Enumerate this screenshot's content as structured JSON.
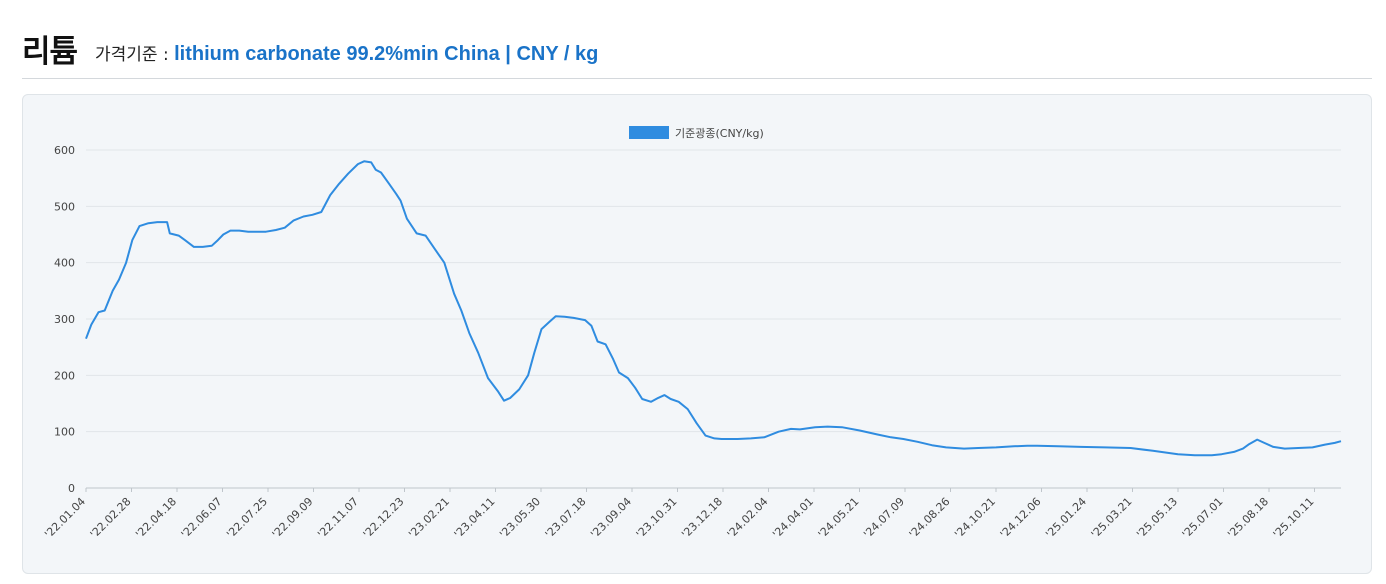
{
  "header": {
    "title": "리튬",
    "basis_label": "가격기준 :",
    "basis_value": "lithium carbonate 99.2%min China | CNY / kg"
  },
  "colors": {
    "accent": "#1a73c8",
    "line": "#2f8ce0"
  },
  "chart_data": {
    "type": "line",
    "title": "",
    "xlabel": "",
    "ylabel": "",
    "ylim": [
      0,
      600
    ],
    "yticks": [
      0,
      100,
      200,
      300,
      400,
      500,
      600
    ],
    "grid": true,
    "legend_position": "top-center",
    "x_tick_labels": [
      "'22.01.04",
      "'22.02.28",
      "'22.04.18",
      "'22.06.07",
      "'22.07.25",
      "'22.09.09",
      "'22.11.07",
      "'22.12.23",
      "'23.02.21",
      "'23.04.11",
      "'23.05.30",
      "'23.07.18",
      "'23.09.04",
      "'23.10.31",
      "'23.12.18",
      "'24.02.04",
      "'24.04.01",
      "'24.05.21",
      "'24.07.09",
      "'24.08.26",
      "'24.10.21",
      "'24.12.06",
      "'25.01.24",
      "'25.03.21",
      "'25.05.13",
      "'25.07.01",
      "'25.08.18",
      "'25.10.11"
    ],
    "series": [
      {
        "name": "기준광종(CNY/kg)",
        "color": "#2f8ce0",
        "points": [
          [
            "2022-01-04",
            265
          ],
          [
            "2022-01-10",
            290
          ],
          [
            "2022-01-18",
            312
          ],
          [
            "2022-01-25",
            315
          ],
          [
            "2022-02-03",
            350
          ],
          [
            "2022-02-10",
            370
          ],
          [
            "2022-02-18",
            400
          ],
          [
            "2022-02-25",
            440
          ],
          [
            "2022-03-05",
            465
          ],
          [
            "2022-03-15",
            470
          ],
          [
            "2022-03-25",
            472
          ],
          [
            "2022-04-05",
            472
          ],
          [
            "2022-04-08",
            452
          ],
          [
            "2022-04-18",
            448
          ],
          [
            "2022-04-25",
            440
          ],
          [
            "2022-05-05",
            428
          ],
          [
            "2022-05-15",
            428
          ],
          [
            "2022-05-25",
            430
          ],
          [
            "2022-06-01",
            440
          ],
          [
            "2022-06-07",
            450
          ],
          [
            "2022-06-15",
            457
          ],
          [
            "2022-06-25",
            457
          ],
          [
            "2022-07-05",
            455
          ],
          [
            "2022-07-15",
            455
          ],
          [
            "2022-07-25",
            455
          ],
          [
            "2022-08-05",
            458
          ],
          [
            "2022-08-15",
            462
          ],
          [
            "2022-08-25",
            475
          ],
          [
            "2022-09-05",
            482
          ],
          [
            "2022-09-15",
            485
          ],
          [
            "2022-09-25",
            490
          ],
          [
            "2022-10-05",
            520
          ],
          [
            "2022-10-15",
            540
          ],
          [
            "2022-10-25",
            558
          ],
          [
            "2022-11-05",
            575
          ],
          [
            "2022-11-12",
            580
          ],
          [
            "2022-11-20",
            578
          ],
          [
            "2022-11-25",
            565
          ],
          [
            "2022-12-01",
            560
          ],
          [
            "2022-12-10",
            540
          ],
          [
            "2022-12-18",
            522
          ],
          [
            "2022-12-23",
            510
          ],
          [
            "2022-12-30",
            478
          ],
          [
            "2023-01-10",
            452
          ],
          [
            "2023-01-20",
            448
          ],
          [
            "2023-01-30",
            425
          ],
          [
            "2023-02-10",
            400
          ],
          [
            "2023-02-21",
            345
          ],
          [
            "2023-03-01",
            315
          ],
          [
            "2023-03-10",
            275
          ],
          [
            "2023-03-20",
            240
          ],
          [
            "2023-03-31",
            195
          ],
          [
            "2023-04-11",
            172
          ],
          [
            "2023-04-18",
            155
          ],
          [
            "2023-04-25",
            160
          ],
          [
            "2023-05-05",
            175
          ],
          [
            "2023-05-15",
            200
          ],
          [
            "2023-05-22",
            240
          ],
          [
            "2023-05-30",
            282
          ],
          [
            "2023-06-08",
            295
          ],
          [
            "2023-06-15",
            305
          ],
          [
            "2023-06-25",
            304
          ],
          [
            "2023-07-05",
            302
          ],
          [
            "2023-07-18",
            298
          ],
          [
            "2023-07-25",
            288
          ],
          [
            "2023-08-01",
            260
          ],
          [
            "2023-08-10",
            255
          ],
          [
            "2023-08-18",
            230
          ],
          [
            "2023-08-25",
            205
          ],
          [
            "2023-09-04",
            195
          ],
          [
            "2023-09-12",
            178
          ],
          [
            "2023-09-20",
            158
          ],
          [
            "2023-09-30",
            153
          ],
          [
            "2023-10-08",
            160
          ],
          [
            "2023-10-15",
            165
          ],
          [
            "2023-10-22",
            158
          ],
          [
            "2023-10-31",
            153
          ],
          [
            "2023-11-10",
            140
          ],
          [
            "2023-11-20",
            115
          ],
          [
            "2023-11-30",
            93
          ],
          [
            "2023-12-10",
            88
          ],
          [
            "2023-12-18",
            87
          ],
          [
            "2024-01-05",
            87
          ],
          [
            "2024-01-20",
            88
          ],
          [
            "2024-02-04",
            90
          ],
          [
            "2024-02-20",
            100
          ],
          [
            "2024-03-05",
            105
          ],
          [
            "2024-03-15",
            104
          ],
          [
            "2024-04-01",
            108
          ],
          [
            "2024-04-15",
            109
          ],
          [
            "2024-05-01",
            108
          ],
          [
            "2024-05-21",
            102
          ],
          [
            "2024-06-10",
            95
          ],
          [
            "2024-06-25",
            90
          ],
          [
            "2024-07-09",
            87
          ],
          [
            "2024-07-25",
            82
          ],
          [
            "2024-08-10",
            76
          ],
          [
            "2024-08-26",
            72
          ],
          [
            "2024-09-15",
            70
          ],
          [
            "2024-10-01",
            71
          ],
          [
            "2024-10-21",
            72
          ],
          [
            "2024-11-10",
            74
          ],
          [
            "2024-11-25",
            75
          ],
          [
            "2024-12-06",
            75
          ],
          [
            "2024-12-30",
            74
          ],
          [
            "2025-01-24",
            73
          ],
          [
            "2025-02-20",
            72
          ],
          [
            "2025-03-21",
            71
          ],
          [
            "2025-04-15",
            66
          ],
          [
            "2025-05-13",
            60
          ],
          [
            "2025-06-01",
            58
          ],
          [
            "2025-06-20",
            58
          ],
          [
            "2025-07-01",
            60
          ],
          [
            "2025-07-15",
            64
          ],
          [
            "2025-07-25",
            70
          ],
          [
            "2025-08-01",
            78
          ],
          [
            "2025-08-10",
            86
          ],
          [
            "2025-08-18",
            80
          ],
          [
            "2025-08-28",
            73
          ],
          [
            "2025-09-10",
            70
          ],
          [
            "2025-09-25",
            71
          ],
          [
            "2025-10-11",
            72
          ],
          [
            "2025-10-25",
            77
          ],
          [
            "2025-11-05",
            80
          ],
          [
            "2025-11-12",
            83
          ]
        ]
      }
    ]
  }
}
